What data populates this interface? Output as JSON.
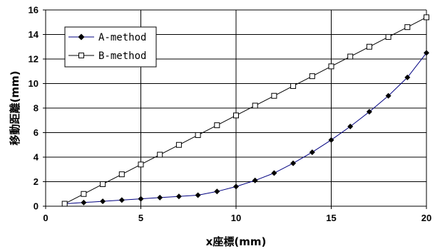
{
  "chart_data": {
    "type": "line",
    "title": "",
    "xlabel": "x座標(mm)",
    "ylabel": "移動距離(mm)",
    "xlim": [
      0,
      20
    ],
    "ylim": [
      0,
      16
    ],
    "xticks": [
      0,
      5,
      10,
      15,
      20
    ],
    "yticks": [
      0,
      2,
      4,
      6,
      8,
      10,
      12,
      14,
      16
    ],
    "grid": true,
    "legend_position": "top-left",
    "x": [
      1,
      2,
      3,
      4,
      5,
      6,
      7,
      8,
      9,
      10,
      11,
      12,
      13,
      14,
      15,
      16,
      17,
      18,
      19,
      20
    ],
    "series": [
      {
        "name": "A-method",
        "marker": "filled-diamond",
        "color": "#000080",
        "markerColor": "#000000",
        "values": [
          0.2,
          0.3,
          0.4,
          0.5,
          0.6,
          0.7,
          0.8,
          0.9,
          1.2,
          1.6,
          2.1,
          2.7,
          3.5,
          4.4,
          5.4,
          6.5,
          7.7,
          9.0,
          10.5,
          12.5
        ]
      },
      {
        "name": "B-method",
        "marker": "open-square",
        "color": "#000000",
        "markerColor": "#000000",
        "values": [
          0.2,
          1.0,
          1.8,
          2.6,
          3.4,
          4.2,
          5.0,
          5.8,
          6.6,
          7.4,
          8.2,
          9.0,
          9.8,
          10.6,
          11.4,
          12.2,
          13.0,
          13.8,
          14.6,
          15.4
        ]
      }
    ]
  }
}
